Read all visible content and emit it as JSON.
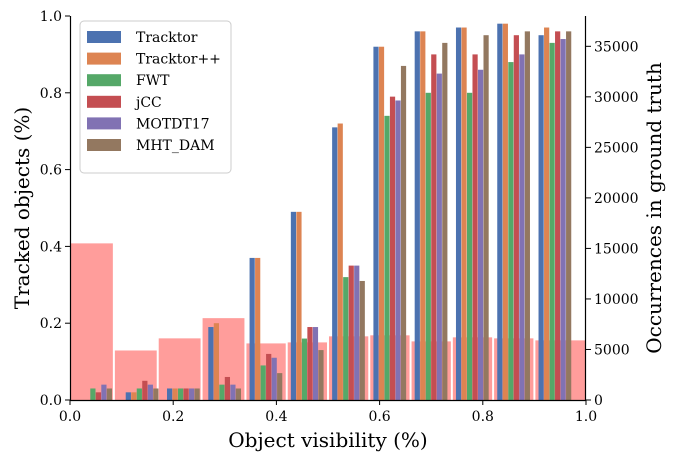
{
  "chart_data": {
    "type": "bar",
    "xlabel": "Object visibility (%)",
    "ylabel": "Tracked objects (%)",
    "y2label": "Occurrences in ground truth",
    "xlim": [
      0.0,
      1.0
    ],
    "ylim": [
      0.0,
      1.0
    ],
    "y2lim": [
      0,
      38000
    ],
    "x_ticks": [
      "0.0",
      "0.2",
      "0.4",
      "0.6",
      "0.8",
      "1.0"
    ],
    "y_ticks": [
      "0.0",
      "0.2",
      "0.4",
      "0.6",
      "0.8",
      "1.0"
    ],
    "y2_ticks": [
      "0",
      "5000",
      "10000",
      "15000",
      "20000",
      "25000",
      "30000",
      "35000"
    ],
    "legend_position": "upper-left",
    "grid": false,
    "bin_centers": [
      0.05,
      0.14,
      0.22,
      0.3,
      0.38,
      0.46,
      0.54,
      0.62,
      0.7,
      0.78,
      0.86,
      0.94
    ],
    "series": [
      {
        "name": "Tracktor",
        "color": "#4c72b0",
        "values": [
          0.0,
          0.02,
          0.03,
          0.19,
          0.37,
          0.49,
          0.71,
          0.92,
          0.96,
          0.97,
          0.98,
          0.95
        ]
      },
      {
        "name": "Tracktor++",
        "color": "#dd8452",
        "values": [
          0.0,
          0.02,
          0.03,
          0.2,
          0.37,
          0.49,
          0.72,
          0.92,
          0.96,
          0.97,
          0.98,
          0.97
        ]
      },
      {
        "name": "FWT",
        "color": "#55a868",
        "values": [
          0.03,
          0.03,
          0.03,
          0.04,
          0.09,
          0.16,
          0.32,
          0.74,
          0.8,
          0.8,
          0.88,
          0.93
        ]
      },
      {
        "name": "jCC",
        "color": "#c44e52",
        "values": [
          0.02,
          0.05,
          0.03,
          0.06,
          0.12,
          0.19,
          0.35,
          0.79,
          0.9,
          0.9,
          0.95,
          0.96
        ]
      },
      {
        "name": "MOTDT17",
        "color": "#8172b3",
        "values": [
          0.04,
          0.04,
          0.03,
          0.04,
          0.11,
          0.19,
          0.35,
          0.78,
          0.85,
          0.86,
          0.9,
          0.94
        ]
      },
      {
        "name": "MHT_DAM",
        "color": "#937860",
        "values": [
          0.03,
          0.03,
          0.03,
          0.03,
          0.07,
          0.13,
          0.31,
          0.87,
          0.93,
          0.95,
          0.96,
          0.96
        ]
      }
    ],
    "occurrences": {
      "color": "#ff9896",
      "bins": [
        {
          "x0": 0.0,
          "x1": 0.085,
          "value": 15500
        },
        {
          "x0": 0.085,
          "x1": 0.17,
          "value": 4900
        },
        {
          "x0": 0.17,
          "x1": 0.255,
          "value": 6100
        },
        {
          "x0": 0.255,
          "x1": 0.34,
          "value": 8100
        },
        {
          "x0": 0.34,
          "x1": 0.42,
          "value": 5600
        },
        {
          "x0": 0.42,
          "x1": 0.5,
          "value": 5700
        },
        {
          "x0": 0.5,
          "x1": 0.58,
          "value": 6300
        },
        {
          "x0": 0.58,
          "x1": 0.66,
          "value": 6400
        },
        {
          "x0": 0.66,
          "x1": 0.74,
          "value": 5800
        },
        {
          "x0": 0.74,
          "x1": 0.82,
          "value": 6200
        },
        {
          "x0": 0.82,
          "x1": 0.9,
          "value": 6100
        },
        {
          "x0": 0.9,
          "x1": 1.0,
          "value": 5900
        }
      ]
    }
  }
}
